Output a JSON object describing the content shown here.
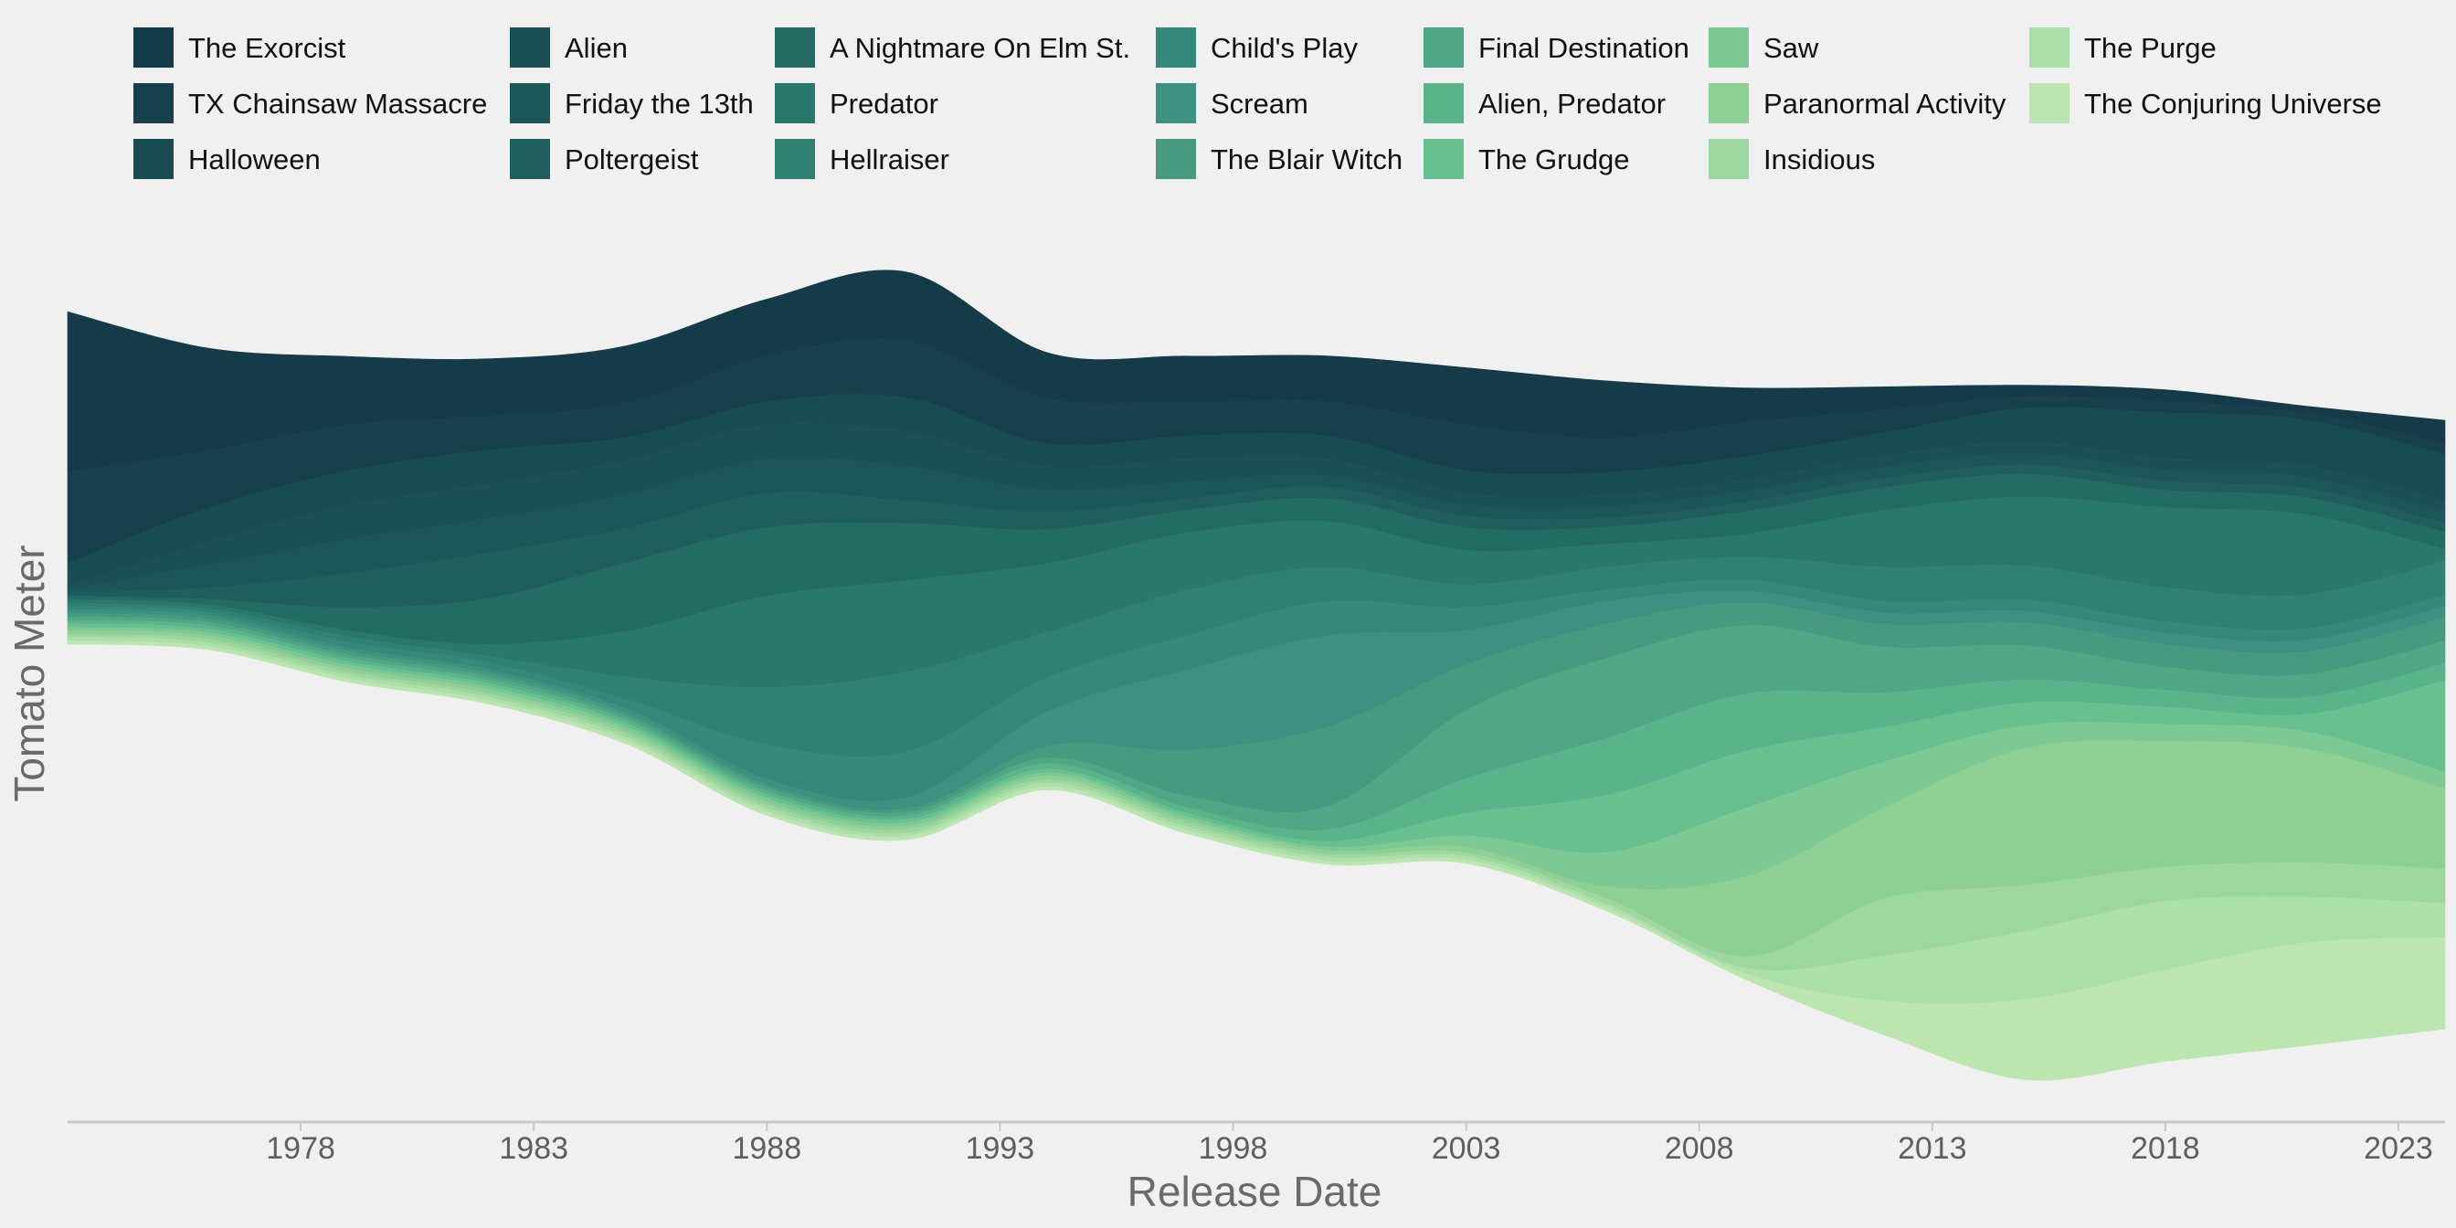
{
  "chart_data": {
    "type": "area",
    "stacked": true,
    "baseline": "wiggle",
    "xlabel": "Release Date",
    "ylabel": "Tomato Meter",
    "x_ticks": [
      1978,
      1983,
      1988,
      1993,
      1998,
      2003,
      2008,
      2013,
      2018,
      2023
    ],
    "xlim": [
      1973,
      2024
    ],
    "grid": false,
    "legend_position": "top",
    "x": [
      1973,
      1976,
      1979,
      1982,
      1985,
      1988,
      1991,
      1994,
      1997,
      2000,
      2003,
      2006,
      2009,
      2012,
      2015,
      2018,
      2021,
      2024
    ],
    "series": [
      {
        "name": "The Exorcist",
        "color": "#153a48",
        "values": [
          14,
          9,
          6,
          5,
          5,
          5,
          6,
          4,
          4,
          4,
          5,
          5,
          3,
          2,
          1,
          1,
          0.6,
          2
        ]
      },
      {
        "name": "TX Chainsaw Massacre",
        "color": "#17404c",
        "values": [
          8,
          5,
          4,
          3,
          3,
          4,
          5,
          4,
          3,
          3,
          4,
          3,
          3,
          2,
          1,
          1,
          0.6,
          1
        ]
      },
      {
        "name": "Halloween",
        "color": "#194b52",
        "values": [
          2,
          3,
          3,
          3,
          2,
          2,
          3,
          2,
          2,
          2,
          2,
          2,
          2,
          2,
          3,
          4,
          4,
          4
        ]
      },
      {
        "name": "Alien",
        "color": "#1b5155",
        "values": [
          0.3,
          2,
          3,
          3,
          3,
          3,
          3,
          2,
          2,
          1.5,
          1,
          1,
          1,
          1,
          1,
          1,
          1,
          1
        ]
      },
      {
        "name": "Friday the 13th",
        "color": "#1d5659",
        "values": [
          0.3,
          2,
          3,
          3,
          3,
          3,
          3,
          2,
          1.5,
          1,
          1,
          1,
          1,
          1,
          1,
          1,
          1,
          1
        ]
      },
      {
        "name": "Poltergeist",
        "color": "#205d5d",
        "values": [
          0.3,
          1,
          3,
          4,
          3,
          3,
          2,
          1.5,
          1,
          1,
          1,
          0.8,
          0.8,
          0.8,
          0.8,
          0.8,
          0.8,
          0.8
        ]
      },
      {
        "name": "A Nightmare On Elm St.",
        "color": "#246b64",
        "values": [
          0.3,
          0.5,
          2,
          4,
          6,
          6,
          5,
          3,
          2,
          2,
          2,
          1.5,
          2,
          2,
          2,
          1.5,
          1.5,
          1.5
        ]
      },
      {
        "name": "Predator",
        "color": "#2a776c",
        "values": [
          0.3,
          0.3,
          0.5,
          1,
          4,
          8,
          8,
          6,
          5,
          4,
          3,
          2,
          2,
          5,
          6,
          7,
          7,
          1
        ]
      },
      {
        "name": "Hellraiser",
        "color": "#2f8171",
        "values": [
          0.3,
          0.3,
          0.5,
          0.6,
          2,
          5,
          7,
          4,
          4,
          3,
          2,
          2,
          2,
          3,
          3,
          3,
          3,
          3
        ]
      },
      {
        "name": "Child's Play",
        "color": "#36887a",
        "values": [
          0.3,
          0.3,
          0.5,
          0.6,
          0.8,
          3,
          4,
          3,
          3,
          3,
          2,
          1,
          1,
          1,
          1,
          1,
          1,
          1
        ]
      },
      {
        "name": "Scream",
        "color": "#3e9080",
        "values": [
          0.3,
          0.3,
          0.3,
          0.3,
          0.4,
          0.5,
          1,
          3,
          7,
          8,
          3,
          2,
          1,
          1,
          1,
          1,
          1,
          1
        ]
      },
      {
        "name": "The Blair Witch",
        "color": "#47997f",
        "values": [
          0.3,
          0.3,
          0.3,
          0.3,
          0.3,
          0.3,
          0.3,
          1,
          4,
          7,
          4,
          3,
          2,
          2,
          2,
          2,
          2,
          2
        ]
      },
      {
        "name": "Final Destination",
        "color": "#51a685",
        "values": [
          0.3,
          0.3,
          0.3,
          0.3,
          0.3,
          0.3,
          0.3,
          0.5,
          1,
          2,
          6,
          7,
          6,
          4,
          3,
          2,
          2,
          2
        ]
      },
      {
        "name": "Alien, Predator",
        "color": "#5ab48b",
        "values": [
          0.3,
          0.3,
          0.3,
          0.3,
          0.3,
          0.3,
          0.3,
          0.5,
          0.5,
          1,
          3,
          5,
          5,
          3,
          2,
          1.5,
          1.5,
          1.5
        ]
      },
      {
        "name": "The Grudge",
        "color": "#68bf8f",
        "values": [
          0.3,
          0.3,
          0.3,
          0.3,
          0.3,
          0.3,
          0.3,
          0.3,
          0.3,
          0.5,
          2,
          5,
          5,
          3,
          2,
          1.5,
          1.5,
          8
        ]
      },
      {
        "name": "Saw",
        "color": "#7ec893",
        "values": [
          0.3,
          0.3,
          0.3,
          0.3,
          0.3,
          0.3,
          0.3,
          0.3,
          0.3,
          0.3,
          1,
          3,
          6,
          4,
          2,
          1.5,
          1.5,
          1.5
        ]
      },
      {
        "name": "Paranormal Activity",
        "color": "#8ecf95",
        "values": [
          0.3,
          0.3,
          0.3,
          0.3,
          0.3,
          0.3,
          0.3,
          0.3,
          0.3,
          0.3,
          0.5,
          1,
          7,
          8,
          12,
          11,
          10,
          7
        ]
      },
      {
        "name": "Insidious",
        "color": "#9dd6a0",
        "values": [
          0.3,
          0.3,
          0.3,
          0.3,
          0.3,
          0.3,
          0.3,
          0.3,
          0.3,
          0.3,
          0.3,
          0.5,
          1,
          5,
          4,
          3,
          3,
          3
        ]
      },
      {
        "name": "The Purge",
        "color": "#acdfab",
        "values": [
          0.3,
          0.3,
          0.3,
          0.3,
          0.3,
          0.3,
          0.3,
          0.3,
          0.3,
          0.3,
          0.3,
          0.3,
          0.5,
          4,
          6,
          6,
          4,
          3
        ]
      },
      {
        "name": "The Conjuring Universe",
        "color": "#bde5b2",
        "values": [
          0.3,
          0.3,
          0.3,
          0.3,
          0.3,
          0.3,
          0.3,
          0.3,
          0.3,
          0.3,
          0.3,
          0.3,
          0.5,
          3,
          7,
          8,
          9,
          8
        ]
      }
    ]
  }
}
